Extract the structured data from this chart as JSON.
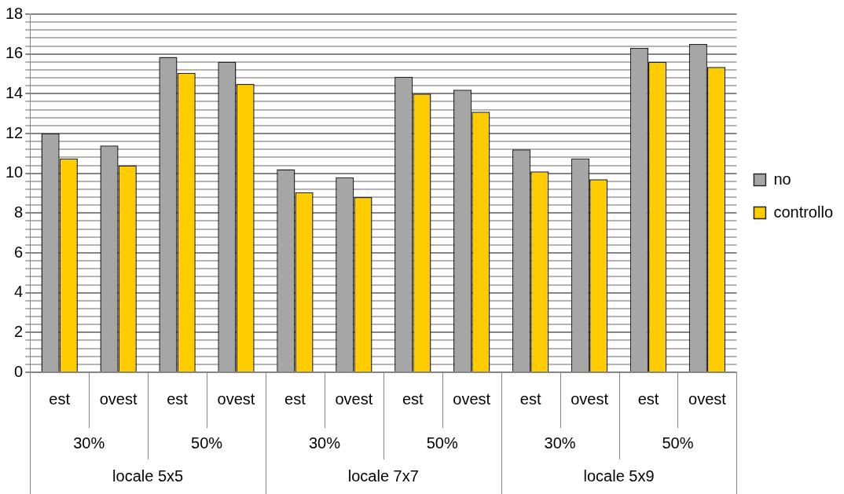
{
  "chart_data": {
    "type": "bar",
    "categories": [
      "est",
      "ovest",
      "est",
      "ovest",
      "est",
      "ovest",
      "est",
      "ovest",
      "est",
      "ovest",
      "est",
      "ovest"
    ],
    "series": [
      {
        "name": "no",
        "color": "#a6a6a6",
        "values": [
          12.0,
          11.4,
          15.85,
          15.6,
          10.2,
          9.8,
          14.85,
          14.2,
          11.2,
          10.75,
          16.3,
          16.5
        ]
      },
      {
        "name": "controllo",
        "color": "#ffcc00",
        "values": [
          10.75,
          10.4,
          15.05,
          14.5,
          9.05,
          8.8,
          14.0,
          13.1,
          10.1,
          9.7,
          15.6,
          15.35
        ]
      }
    ],
    "annotations": [
      "30%",
      "50%",
      "30%",
      "50%",
      "30%",
      "50%",
      "locale 5x5",
      "locale 7x7",
      "locale 5x9"
    ],
    "ylim": [
      0,
      18
    ],
    "yticks": [
      0,
      {
        "value": 0.4,
        "label": null
      },
      {
        "value": 0.8,
        "label": null
      },
      {
        "value": 1.2,
        "label": null
      },
      {
        "value": 1.6,
        "label": null
      },
      2,
      {
        "value": 2.4,
        "label": null
      },
      {
        "value": 2.8,
        "label": null
      },
      {
        "value": 3.2,
        "label": null
      },
      {
        "value": 3.6,
        "label": null
      },
      4,
      {
        "value": 4.4,
        "label": null
      },
      {
        "value": 4.8,
        "label": null
      },
      {
        "value": 5.2,
        "label": null
      },
      {
        "value": 5.6,
        "label": null
      },
      6,
      {
        "value": 6.4,
        "label": null
      },
      {
        "value": 6.8,
        "label": null
      },
      {
        "value": 7.2,
        "label": null
      },
      {
        "value": 7.6,
        "label": null
      },
      8,
      {
        "value": 8.4,
        "label": null
      },
      {
        "value": 8.8,
        "label": null
      },
      {
        "value": 9.2,
        "label": null
      },
      {
        "value": 9.6,
        "label": null
      },
      10,
      {
        "value": 10.4,
        "label": null
      },
      {
        "value": 10.8,
        "label": null
      },
      {
        "value": 11.2,
        "label": null
      },
      {
        "value": 11.6,
        "label": null
      },
      12,
      {
        "value": 12.4,
        "label": null
      },
      {
        "value": 12.8,
        "label": null
      },
      {
        "value": 13.2,
        "label": null
      },
      {
        "value": 13.6,
        "label": null
      },
      14,
      {
        "value": 14.4,
        "label": null
      },
      {
        "value": 14.8,
        "label": null
      },
      {
        "value": 15.2,
        "label": null
      },
      {
        "value": 15.6,
        "label": null
      },
      16,
      {
        "value": 16.4,
        "label": null
      },
      {
        "value": 16.8,
        "label": null
      },
      {
        "value": 17.2,
        "label": null
      },
      {
        "value": 17.6,
        "label": null
      },
      18
    ],
    "grid": true,
    "legend": "right"
  }
}
